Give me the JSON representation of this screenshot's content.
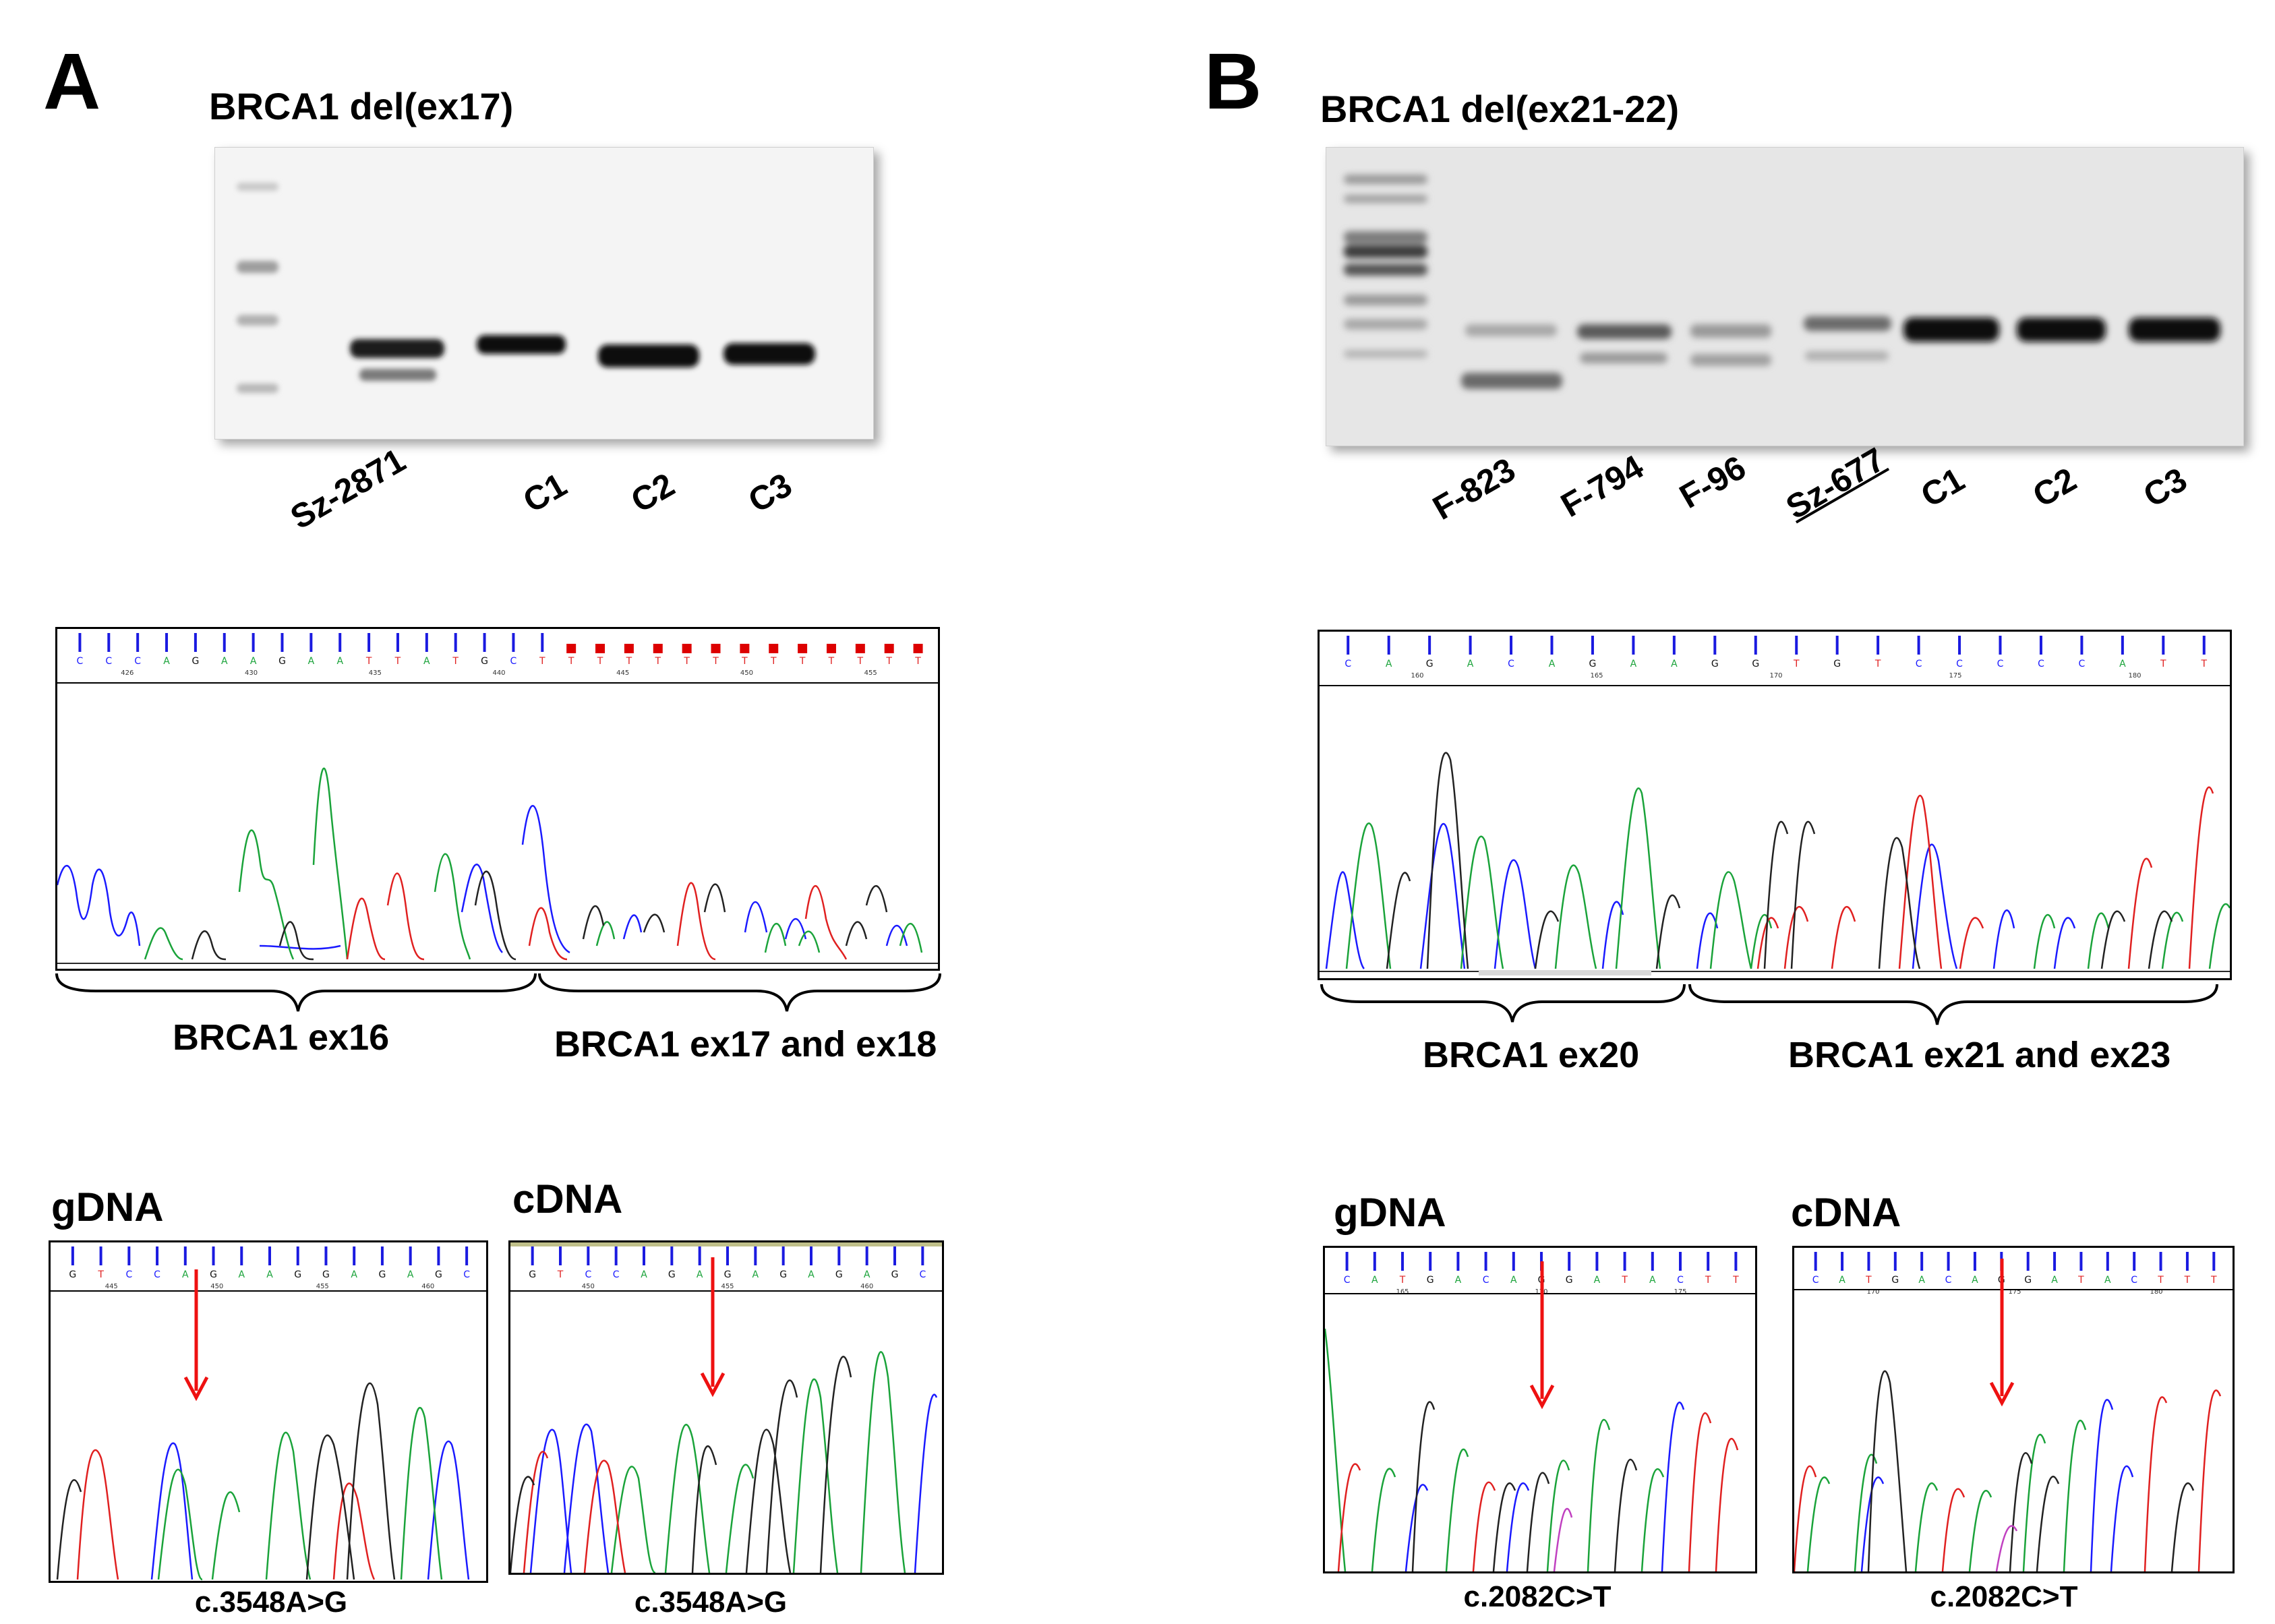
{
  "panels": [
    {
      "letter": "A",
      "gel_title": "BRCA1 del(ex17)",
      "lanes": [
        "Sz-2871",
        "C1",
        "C2",
        "C3"
      ],
      "chromatogram": {
        "bases": [
          "C",
          "C",
          "C",
          "A",
          "G",
          "A",
          "A",
          "G",
          "A",
          "A",
          "T",
          "T",
          "A",
          "T",
          "G",
          "C",
          "T"
        ],
        "positions": [
          "426",
          "430",
          "435",
          "440",
          "445",
          "450",
          "455"
        ],
        "segments": [
          "BRCA1 ex16",
          "BRCA1 ex17 and ex18"
        ]
      },
      "gdna_label": "gDNA",
      "cdna_label": "cDNA",
      "gdna_bases": [
        "G",
        "T",
        "C",
        "C",
        "A",
        "G",
        "A",
        "A",
        "G",
        "G",
        "A",
        "G",
        "A",
        "G",
        "C"
      ],
      "gdna_positions": [
        "445",
        "450",
        "455",
        "460"
      ],
      "cdna_bases": [
        "G",
        "T",
        "C",
        "C",
        "A",
        "G",
        "A",
        "G",
        "A",
        "G",
        "A",
        "G",
        "A",
        "G",
        "C"
      ],
      "cdna_positions": [
        "450",
        "455",
        "460"
      ],
      "gdna_mutation": "c.3548A>G",
      "cdna_mutation": "c.3548A>G"
    },
    {
      "letter": "B",
      "gel_title": "BRCA1 del(ex21-22)",
      "lanes": [
        "F-823",
        "F-794",
        "F-96",
        "Sz-677",
        "C1",
        "C2",
        "C3"
      ],
      "chromatogram": {
        "bases": [
          "C",
          "A",
          "G",
          "A",
          "C",
          "A",
          "G",
          "A",
          "A",
          "G",
          "G",
          "T",
          "G",
          "T",
          "C",
          "C",
          "C",
          "C",
          "C",
          "A",
          "T",
          "T"
        ],
        "positions": [
          "160",
          "165",
          "170",
          "175",
          "180"
        ],
        "segments": [
          "BRCA1 ex20",
          "BRCA1 ex21 and ex23"
        ]
      },
      "gdna_label": "gDNA",
      "cdna_label": "cDNA",
      "gdna_bases": [
        "C",
        "A",
        "T",
        "G",
        "A",
        "C",
        "A",
        "G",
        "G",
        "A",
        "T",
        "A",
        "C",
        "T",
        "T"
      ],
      "gdna_positions": [
        "165",
        "170",
        "175"
      ],
      "cdna_bases": [
        "C",
        "A",
        "T",
        "G",
        "A",
        "C",
        "A",
        "G",
        "G",
        "A",
        "T",
        "A",
        "C",
        "T",
        "T",
        "T"
      ],
      "cdna_positions": [
        "170",
        "175",
        "180"
      ],
      "gdna_mutation": "c.2082C>T",
      "cdna_mutation": "c.2082C>T"
    }
  ],
  "colors": {
    "A": "#1aa33a",
    "C": "#1a1aff",
    "G": "#111111",
    "T": "#e02020",
    "arrow": "#ee1111",
    "quality_bar": "#1a1ae0",
    "mismatch": "#dd0000"
  }
}
